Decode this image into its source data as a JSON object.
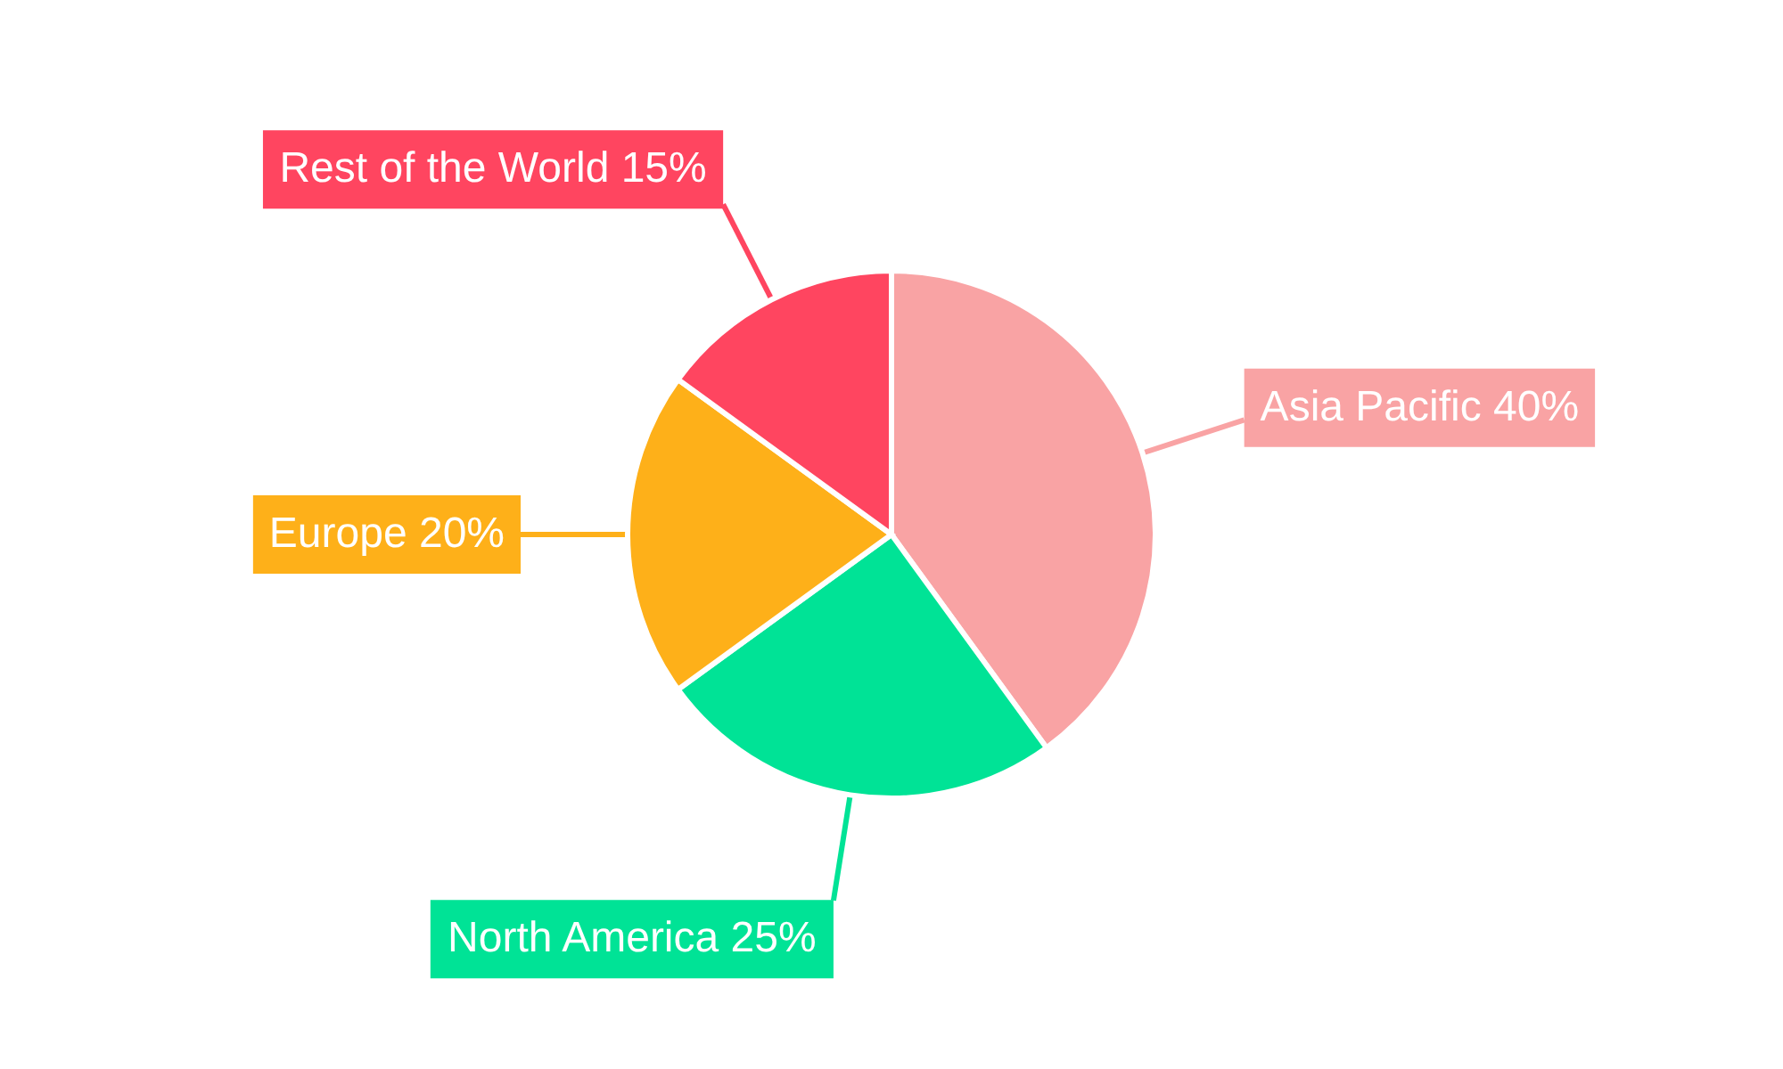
{
  "chart_data": {
    "type": "pie",
    "categories": [
      "Asia Pacific",
      "North America",
      "Europe",
      "Rest of the World"
    ],
    "values": [
      40,
      25,
      20,
      15
    ],
    "colors": [
      "#f9a3a4",
      "#00e396",
      "#feb019",
      "#ff4560"
    ],
    "value_labels": [
      "40%",
      "25%",
      "20%",
      "15%"
    ]
  }
}
